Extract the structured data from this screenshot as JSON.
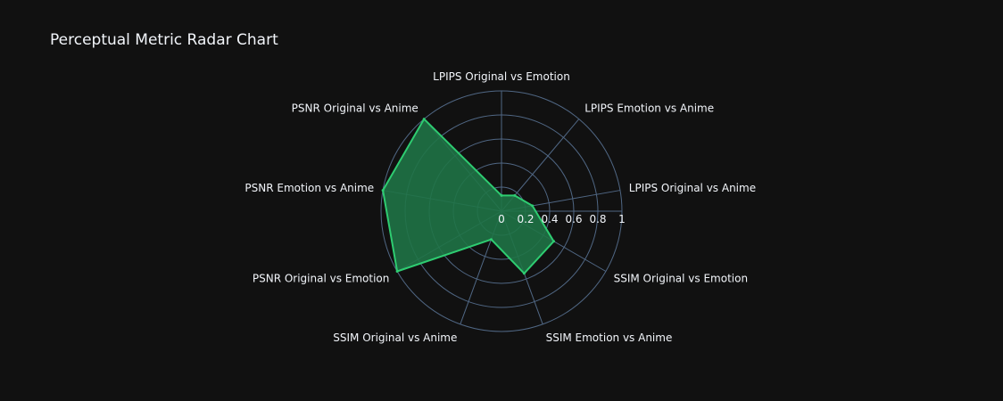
{
  "colors": {
    "background": "#111111",
    "grid": "#506784",
    "series_line": "#2ecc71",
    "series_fill": "#1f7346",
    "text": "#f2f5fa"
  },
  "chart_data": {
    "type": "radar",
    "title": "Perceptual Metric Radar Chart",
    "categories": [
      "LPIPS Original vs Emotion",
      "LPIPS Emotion vs Anime",
      "LPIPS Original vs Anime",
      "SSIM Original vs Emotion",
      "SSIM Emotion vs Anime",
      "SSIM Original vs Anime",
      "PSNR Original vs Emotion",
      "PSNR Emotion vs Anime",
      "PSNR Original vs Anime"
    ],
    "values": [
      0.13,
      0.17,
      0.26,
      0.5,
      0.55,
      0.25,
      1.0,
      1.0,
      1.0
    ],
    "radial_range": [
      0,
      1
    ],
    "radial_ticks": [
      "0",
      "0.2",
      "0.4",
      "0.6",
      "0.8",
      "1"
    ],
    "grid": true,
    "legend": "none"
  }
}
